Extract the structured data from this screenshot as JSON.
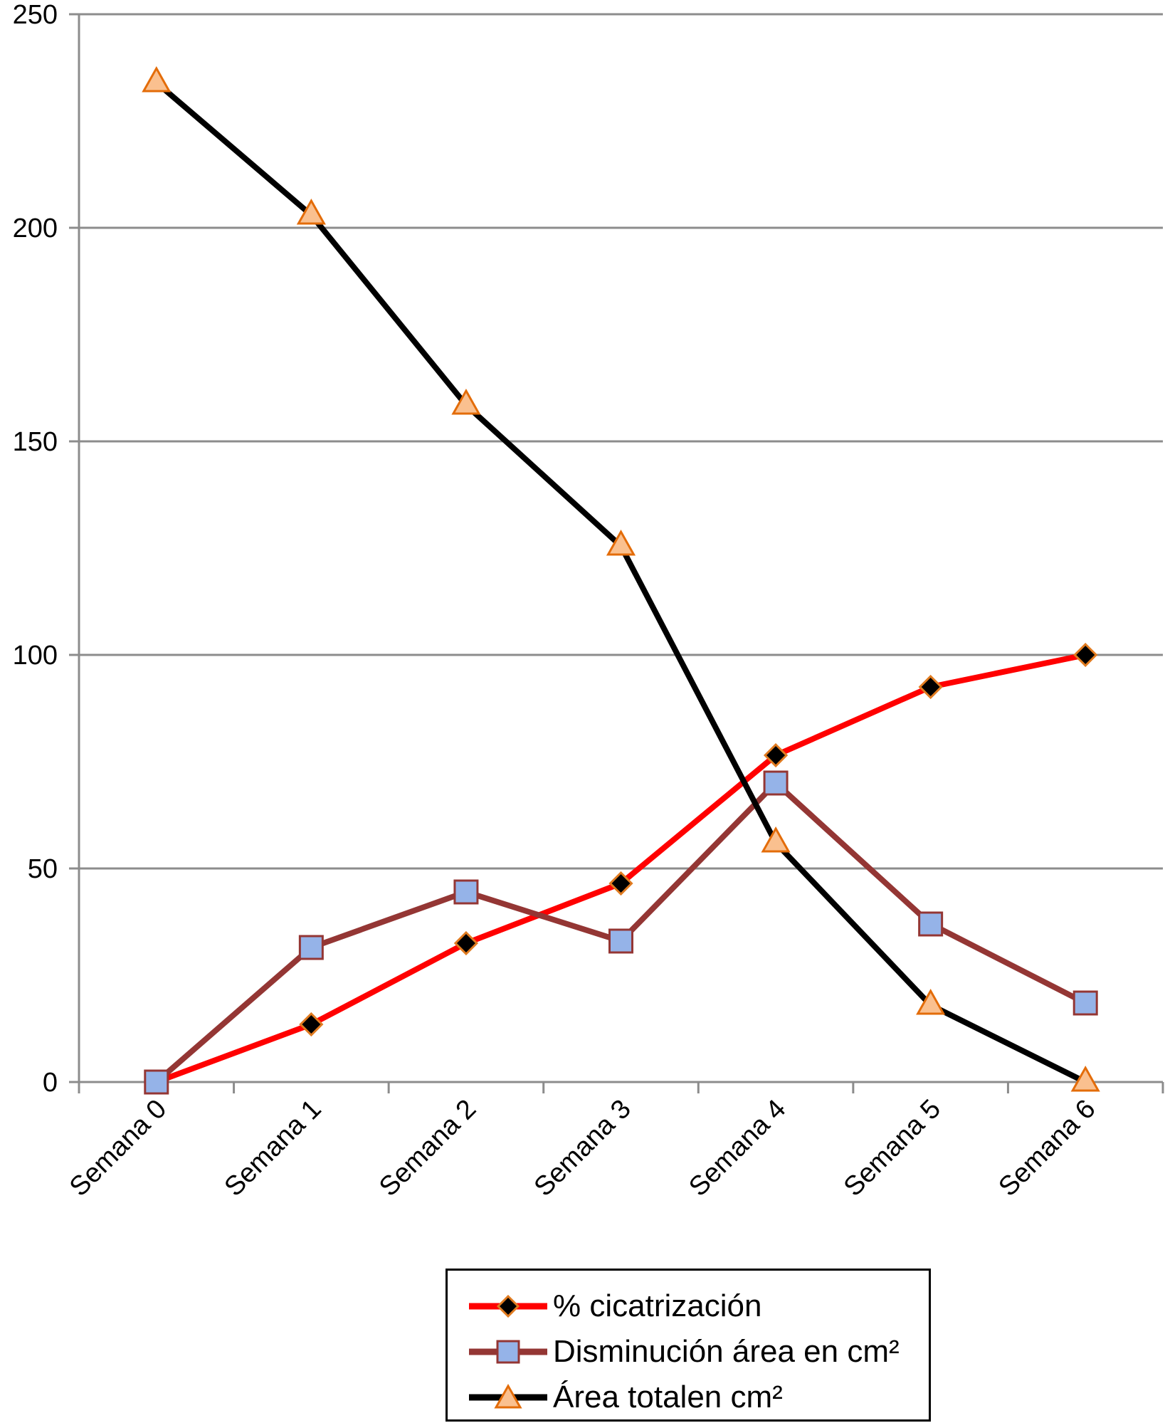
{
  "chart_data": {
    "type": "line",
    "title": "",
    "xlabel": "",
    "ylabel": "",
    "categories": [
      "Semana 0",
      "Semana 1",
      "Semana 2",
      "Semana 3",
      "Semana 4",
      "Semana 5",
      "Semana 6"
    ],
    "ylim": [
      0,
      250
    ],
    "yticks": [
      "0",
      "50",
      "100",
      "150",
      "200",
      "250"
    ],
    "grid": true,
    "legend_position": "bottom",
    "series": [
      {
        "name": "% cicatrización",
        "values": [
          0,
          13.5,
          32.5,
          46.5,
          76.5,
          92.5,
          100
        ],
        "color": "#ff0000",
        "marker": "diamond",
        "marker_fill": "#000000",
        "marker_stroke": "#e07b20"
      },
      {
        "name": "Disminución área en cm²",
        "values": [
          0,
          31.5,
          44.5,
          33,
          70,
          37,
          18.5
        ],
        "color": "#943634",
        "marker": "square",
        "marker_fill": "#95b3e8",
        "marker_stroke": "#943634"
      },
      {
        "name": "Área totalen cm²",
        "values": [
          234,
          203,
          158.5,
          125.5,
          56,
          18,
          0
        ],
        "color": "#000000",
        "marker": "triangle",
        "marker_fill": "#fac08f",
        "marker_stroke": "#e36c09"
      }
    ]
  }
}
